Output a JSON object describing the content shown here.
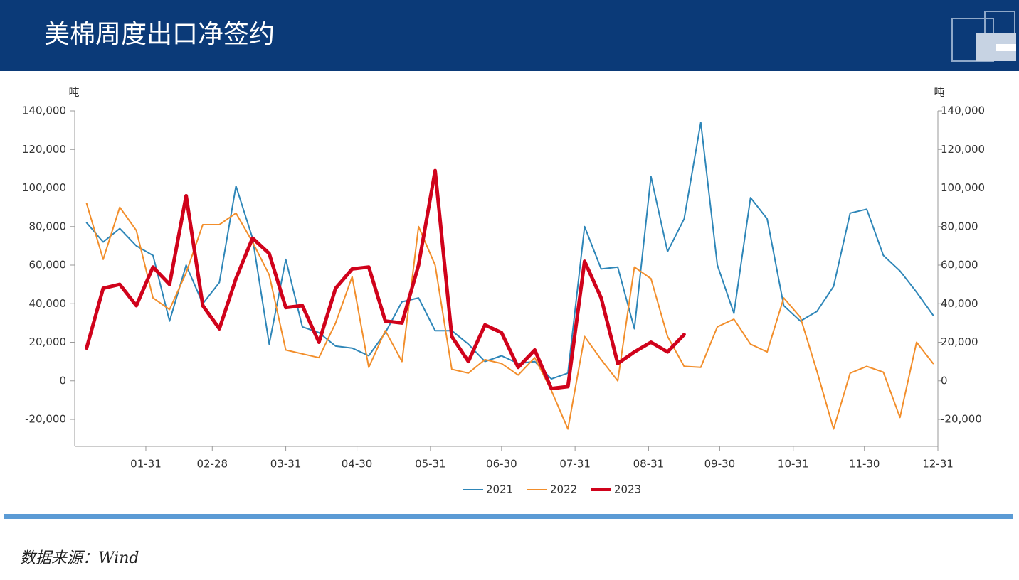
{
  "title": "美棉周度出口净签约",
  "source": "数据来源：Wind",
  "chart_data": {
    "type": "line",
    "y_label": "吨",
    "y2_label": "吨",
    "x": [
      "01-06",
      "01-13",
      "01-20",
      "01-27",
      "02-03",
      "02-10",
      "02-17",
      "02-24",
      "03-03",
      "03-10",
      "03-17",
      "03-24",
      "03-31",
      "04-07",
      "04-14",
      "04-21",
      "04-28",
      "05-05",
      "05-12",
      "05-19",
      "05-26",
      "06-02",
      "06-09",
      "06-16",
      "06-23",
      "06-30",
      "07-07",
      "07-14",
      "07-21",
      "07-28",
      "08-04",
      "08-11",
      "08-18",
      "08-25",
      "09-01",
      "09-08",
      "09-15",
      "09-22",
      "09-29",
      "10-06",
      "10-13",
      "10-20",
      "10-27",
      "11-03",
      "11-10",
      "11-17",
      "11-24",
      "12-01",
      "12-08",
      "12-15",
      "12-22",
      "12-29"
    ],
    "xlim": [
      "01-01",
      "12-31"
    ],
    "xticks": [
      "01-31",
      "02-28",
      "03-31",
      "04-30",
      "05-31",
      "06-30",
      "07-31",
      "08-31",
      "09-30",
      "10-31",
      "11-30",
      "12-31"
    ],
    "ylim": [
      -34000,
      140000
    ],
    "yticks": [
      {
        "value": -20000,
        "label": "-20,000"
      },
      0,
      {
        "value": 20000,
        "label": "20,000"
      },
      {
        "value": 40000,
        "label": "40,000"
      },
      {
        "value": 60000,
        "label": "60,000"
      },
      {
        "value": 80000,
        "label": "80,000"
      },
      {
        "value": 100000,
        "label": "100,000"
      },
      {
        "value": 120000,
        "label": "120,000"
      },
      {
        "value": 140000,
        "label": "140,000"
      }
    ],
    "y2lim": [
      -34000,
      140000
    ],
    "y2ticks": [
      {
        "value": -20000,
        "label": "-20,000"
      },
      0,
      {
        "value": 20000,
        "label": "20,000"
      },
      {
        "value": 40000,
        "label": "40,000"
      },
      {
        "value": 60000,
        "label": "60,000"
      },
      {
        "value": 80000,
        "label": "80,000"
      },
      {
        "value": 100000,
        "label": "100,000"
      },
      {
        "value": 120000,
        "label": "120,000"
      },
      {
        "value": 140000,
        "label": "140,000"
      }
    ],
    "series": [
      {
        "name": "2021",
        "color": "#2e86b8",
        "width": 2,
        "values": [
          82000,
          72000,
          79000,
          70000,
          65000,
          31000,
          60000,
          40000,
          51000,
          101000,
          74000,
          19000,
          63000,
          28000,
          25000,
          18000,
          17000,
          13000,
          25000,
          41000,
          43000,
          26000,
          26000,
          19000,
          10000,
          13000,
          9000,
          10000,
          1000,
          4000,
          80000,
          58000,
          59000,
          27000,
          106000,
          67000,
          84000,
          134000,
          60000,
          35000,
          95000,
          84000,
          39000,
          31000,
          36000,
          49000,
          87000,
          89000,
          65000,
          57000,
          46000,
          34000
        ]
      },
      {
        "name": "2022",
        "color": "#f28e2b",
        "width": 2,
        "values": [
          92000,
          63000,
          90000,
          78000,
          43000,
          37000,
          56000,
          81000,
          81000,
          87000,
          72000,
          55000,
          16000,
          14000,
          12000,
          30000,
          54000,
          7000,
          26000,
          10000,
          80000,
          60000,
          6000,
          4000,
          11000,
          9000,
          3000,
          12000,
          -5000,
          -25000,
          23000,
          11000,
          0,
          59000,
          53000,
          23000,
          7500,
          7000,
          28000,
          32000,
          19000,
          15000,
          43000,
          33000,
          5000,
          -25000,
          4000,
          7500,
          4500,
          -19000,
          20000,
          9000
        ]
      },
      {
        "name": "2023",
        "color": "#d0021b",
        "width": 5,
        "values": [
          17000,
          48000,
          50000,
          39000,
          59000,
          50000,
          96000,
          39000,
          27000,
          53000,
          74000,
          66000,
          38000,
          39000,
          20000,
          48000,
          58000,
          59000,
          31000,
          30000,
          60000,
          109000,
          23000,
          10000,
          29000,
          25000,
          7000,
          16000,
          -4000,
          -3000,
          62000,
          43000,
          9000,
          15000,
          20000,
          15000,
          24000,
          null,
          null,
          null,
          null,
          null,
          null,
          null,
          null,
          null,
          null,
          null,
          null,
          null,
          null,
          null
        ]
      }
    ]
  }
}
